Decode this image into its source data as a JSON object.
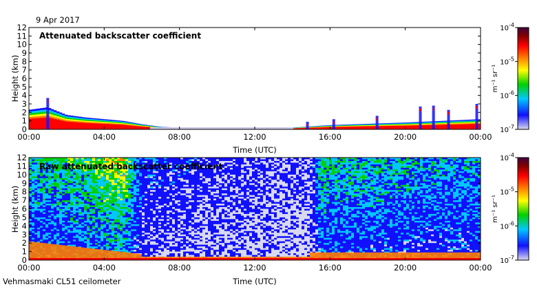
{
  "date_label": "9 Apr 2017",
  "footer_label": "Vehmasmaki CL51 ceilometer",
  "colorbar": {
    "unit_label": "m⁻¹ sr⁻¹",
    "ticks": [
      {
        "base": "10",
        "exp": "-4",
        "value": 0.0001
      },
      {
        "base": "10",
        "exp": "-5",
        "value": 1e-05
      },
      {
        "base": "10",
        "exp": "-6",
        "value": 1e-06
      },
      {
        "base": "10",
        "exp": "-7",
        "value": 1e-07
      }
    ],
    "colors": [
      "#d8d8f0",
      "#1010ff",
      "#00c8ff",
      "#00d000",
      "#ffff00",
      "#ff8000",
      "#ff0000",
      "#800000",
      "#400040"
    ]
  },
  "chart_data": [
    {
      "type": "heatmap",
      "title": "Attenuated backscatter coefficient",
      "xlabel": "Time (UTC)",
      "ylabel": "Height (km)",
      "x_ticks": [
        "00:00",
        "04:00",
        "08:00",
        "12:00",
        "16:00",
        "20:00",
        "00:00"
      ],
      "y_ticks": [
        "0",
        "1",
        "2",
        "3",
        "4",
        "5",
        "6",
        "7",
        "8",
        "9",
        "10",
        "11",
        "12"
      ],
      "xlim_hours": [
        0,
        24
      ],
      "ylim_km": [
        0,
        12
      ],
      "color_scale": "log",
      "clim": [
        1e-07,
        0.0001
      ],
      "features": {
        "surface_layer_top_km": [
          {
            "hour": 0,
            "km": 2.3
          },
          {
            "hour": 1,
            "km": 2.6
          },
          {
            "hour": 2,
            "km": 1.7
          },
          {
            "hour": 3,
            "km": 1.4
          },
          {
            "hour": 4,
            "km": 1.2
          },
          {
            "hour": 5,
            "km": 1.0
          },
          {
            "hour": 6,
            "km": 0.6
          },
          {
            "hour": 7,
            "km": 0.3
          },
          {
            "hour": 8,
            "km": 0.2
          },
          {
            "hour": 12,
            "km": 0.1
          },
          {
            "hour": 14,
            "km": 0.2
          },
          {
            "hour": 16,
            "km": 0.5
          },
          {
            "hour": 20,
            "km": 0.8
          },
          {
            "hour": 24,
            "km": 1.2
          }
        ],
        "cloud_tops_km": [
          {
            "hour": 1.0,
            "km": 3.7
          },
          {
            "hour": 14.8,
            "km": 0.9
          },
          {
            "hour": 16.2,
            "km": 1.2
          },
          {
            "hour": 18.5,
            "km": 1.6
          },
          {
            "hour": 20.8,
            "km": 2.7
          },
          {
            "hour": 21.5,
            "km": 2.8
          },
          {
            "hour": 22.3,
            "km": 2.3
          },
          {
            "hour": 23.8,
            "km": 3.0
          }
        ]
      }
    },
    {
      "type": "heatmap",
      "title": "Raw attenuated backscatter coefficient",
      "xlabel": "Time (UTC)",
      "ylabel": "Height (km)",
      "x_ticks": [
        "00:00",
        "04:00",
        "08:00",
        "12:00",
        "16:00",
        "20:00",
        "00:00"
      ],
      "y_ticks": [
        "0",
        "1",
        "2",
        "3",
        "4",
        "5",
        "6",
        "7",
        "8",
        "9",
        "10",
        "11",
        "12"
      ],
      "xlim_hours": [
        0,
        24
      ],
      "ylim_km": [
        0,
        12
      ],
      "color_scale": "log",
      "clim": [
        1e-07,
        0.0001
      ],
      "features": {
        "noise_level_by_hour": [
          {
            "hour": 0,
            "level": 0.55
          },
          {
            "hour": 3,
            "level": 0.65
          },
          {
            "hour": 5,
            "level": 0.8
          },
          {
            "hour": 6,
            "level": 0.35
          },
          {
            "hour": 9,
            "level": 0.3
          },
          {
            "hour": 12,
            "level": 0.25
          },
          {
            "hour": 15,
            "level": 0.2
          },
          {
            "hour": 15.5,
            "level": 0.6
          },
          {
            "hour": 18,
            "level": 0.55
          },
          {
            "hour": 21,
            "level": 0.5
          },
          {
            "hour": 24,
            "level": 0.5
          }
        ]
      }
    }
  ]
}
